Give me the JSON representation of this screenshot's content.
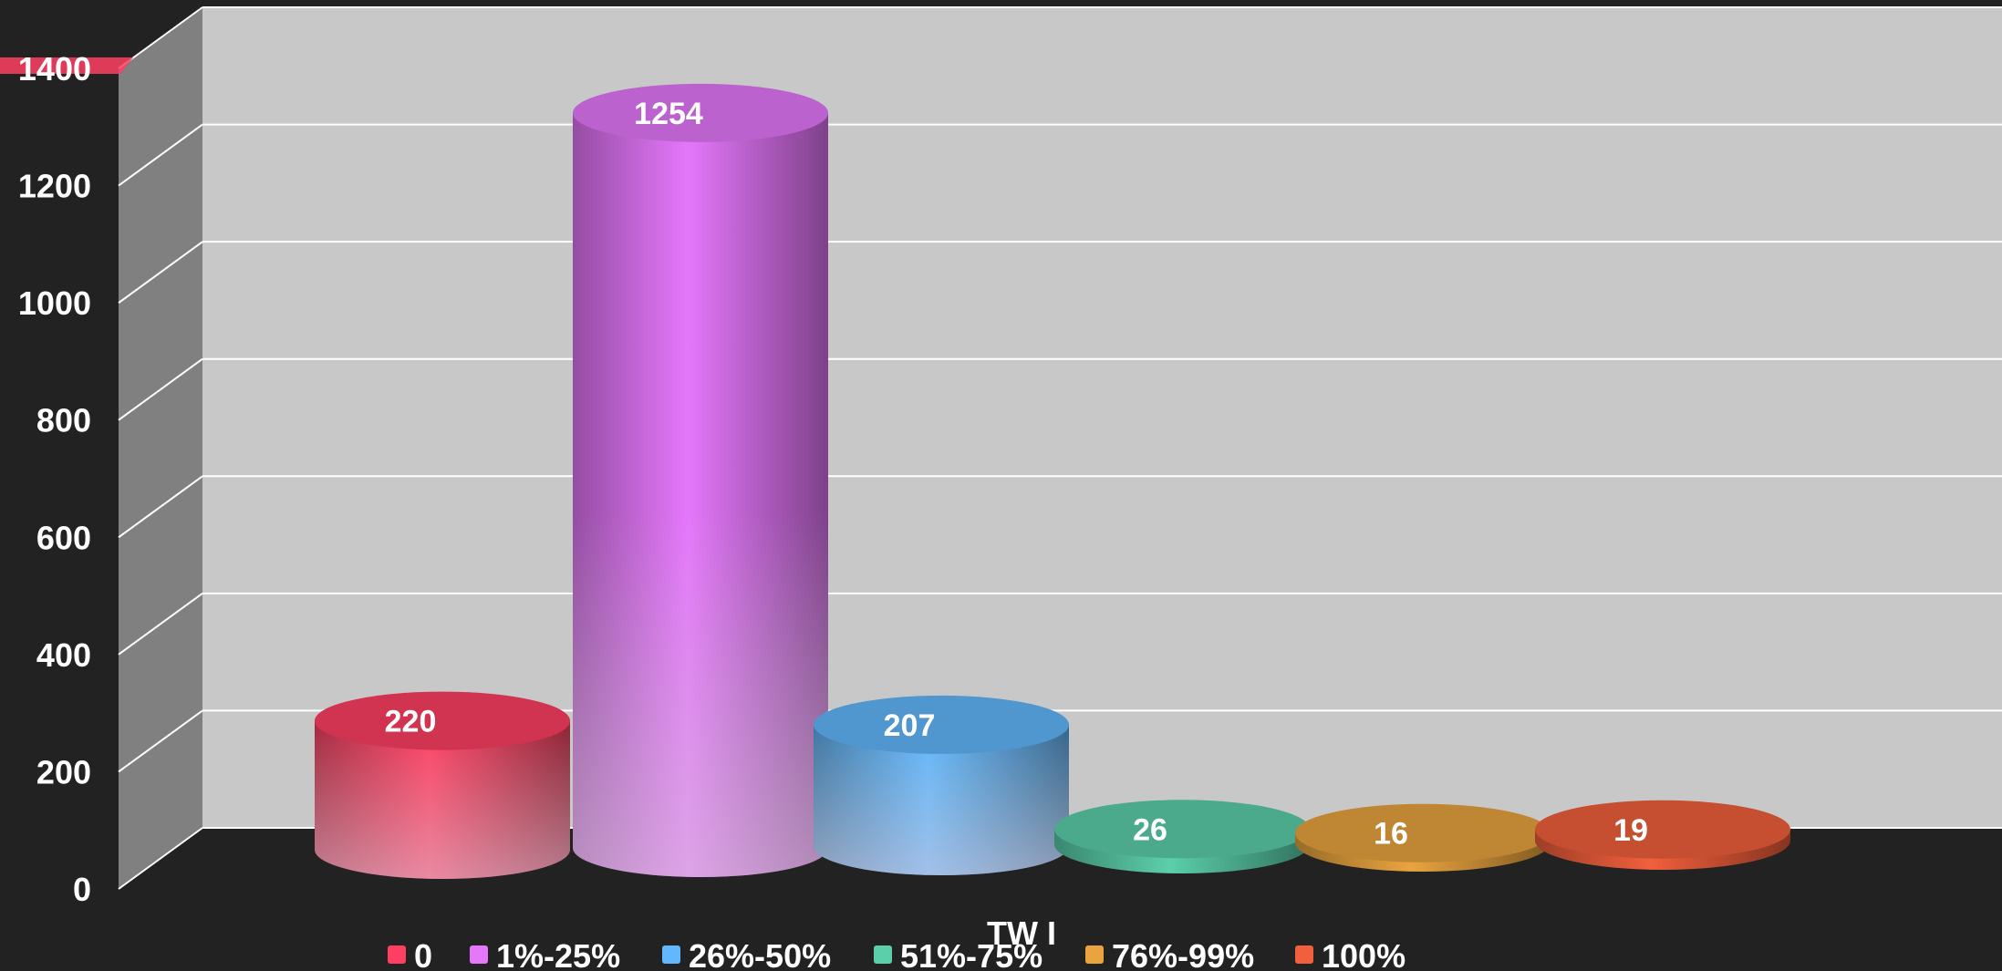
{
  "chart_data": {
    "type": "bar",
    "style": "3d-cylinder",
    "xlabel": "TW I",
    "categories": [
      "0",
      "1%-25%",
      "26%-50%",
      "51%-75%",
      "76%-99%",
      "100%"
    ],
    "values": [
      220,
      1254,
      207,
      26,
      16,
      19
    ],
    "colors": [
      "#ff3f62",
      "#e577fb",
      "#62b7fd",
      "#5bcfaa",
      "#e9a43f",
      "#f25f3c"
    ],
    "ylim": [
      0,
      1400
    ],
    "yticks": [
      0,
      200,
      400,
      600,
      800,
      1000,
      1200,
      1400
    ],
    "grid": true,
    "legend_position": "bottom"
  }
}
